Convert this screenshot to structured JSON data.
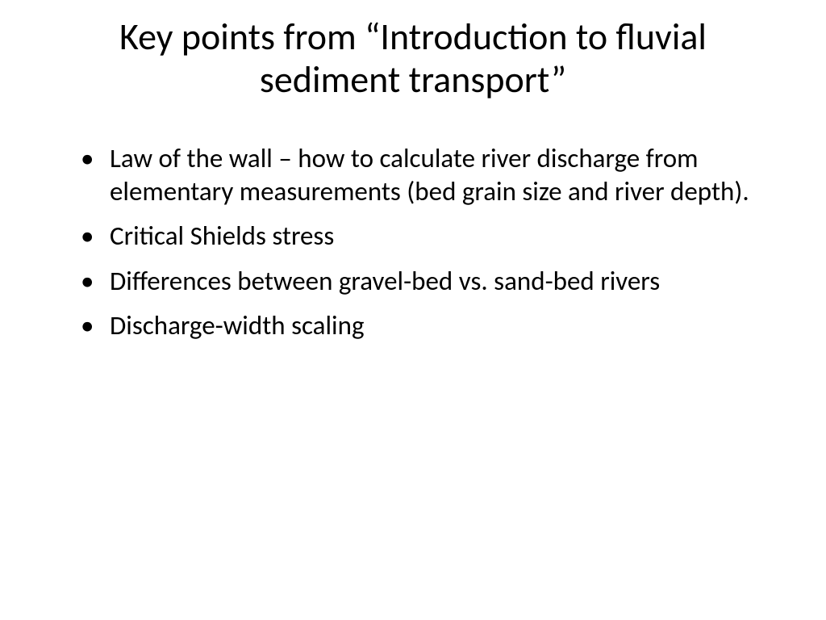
{
  "slide": {
    "title": "Key points from “Introduction to fluvial sediment transport”",
    "bullets": [
      "Law of the wall – how to calculate river discharge from elementary measurements (bed grain size and river depth).",
      "Critical Shields stress",
      "Differences between gravel-bed vs. sand-bed rivers",
      "Discharge-width scaling"
    ],
    "styling": {
      "background_color": "#ffffff",
      "text_color": "#000000",
      "title_fontsize": 46,
      "body_fontsize": 33,
      "font_family": "Calibri"
    }
  }
}
